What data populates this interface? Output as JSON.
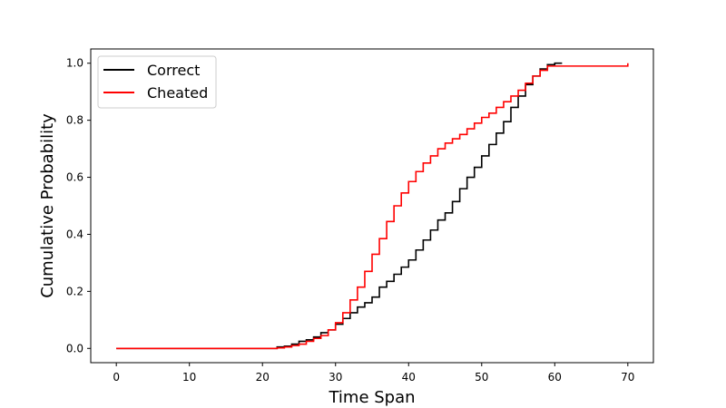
{
  "chart_data": {
    "type": "line",
    "step": true,
    "xlabel": "Time Span",
    "ylabel": "Cumulative Probability",
    "xlim": [
      -3.5,
      73.5
    ],
    "ylim": [
      -0.05,
      1.05
    ],
    "xticks": [
      0,
      10,
      20,
      30,
      40,
      50,
      60,
      70
    ],
    "yticks": [
      0.0,
      0.2,
      0.4,
      0.6,
      0.8,
      1.0
    ],
    "xtick_labels": [
      "0",
      "10",
      "20",
      "30",
      "40",
      "50",
      "60",
      "70"
    ],
    "ytick_labels": [
      "0.0",
      "0.2",
      "0.4",
      "0.6",
      "0.8",
      "1.0"
    ],
    "grid": false,
    "legend_position": "top-left",
    "series": [
      {
        "name": "Correct",
        "color": "#000000",
        "x": [
          0,
          21,
          22,
          23,
          24,
          25,
          26,
          27,
          28,
          29,
          30,
          31,
          32,
          33,
          34,
          35,
          36,
          37,
          38,
          39,
          40,
          41,
          42,
          43,
          44,
          45,
          46,
          47,
          48,
          49,
          50,
          51,
          52,
          53,
          54,
          55,
          56,
          57,
          58,
          59,
          60,
          61
        ],
        "y": [
          0.0,
          0.0,
          0.005,
          0.008,
          0.015,
          0.025,
          0.03,
          0.04,
          0.055,
          0.065,
          0.085,
          0.105,
          0.125,
          0.145,
          0.16,
          0.18,
          0.215,
          0.235,
          0.26,
          0.285,
          0.31,
          0.345,
          0.38,
          0.415,
          0.45,
          0.475,
          0.515,
          0.56,
          0.6,
          0.635,
          0.675,
          0.715,
          0.755,
          0.795,
          0.845,
          0.885,
          0.925,
          0.955,
          0.98,
          0.995,
          1.0,
          1.0
        ]
      },
      {
        "name": "Cheated",
        "color": "#ff0000",
        "x": [
          0,
          21,
          22,
          23,
          24,
          25,
          26,
          27,
          28,
          29,
          30,
          31,
          32,
          33,
          34,
          35,
          36,
          37,
          38,
          39,
          40,
          41,
          42,
          43,
          44,
          45,
          46,
          47,
          48,
          49,
          50,
          51,
          52,
          53,
          54,
          55,
          56,
          57,
          58,
          59,
          70
        ],
        "y": [
          0.0,
          0.0,
          0.002,
          0.005,
          0.01,
          0.015,
          0.025,
          0.035,
          0.045,
          0.065,
          0.09,
          0.125,
          0.17,
          0.215,
          0.27,
          0.33,
          0.385,
          0.445,
          0.5,
          0.545,
          0.585,
          0.62,
          0.65,
          0.675,
          0.7,
          0.72,
          0.735,
          0.75,
          0.77,
          0.79,
          0.81,
          0.825,
          0.845,
          0.865,
          0.885,
          0.905,
          0.93,
          0.955,
          0.975,
          0.99,
          1.0
        ]
      }
    ]
  }
}
